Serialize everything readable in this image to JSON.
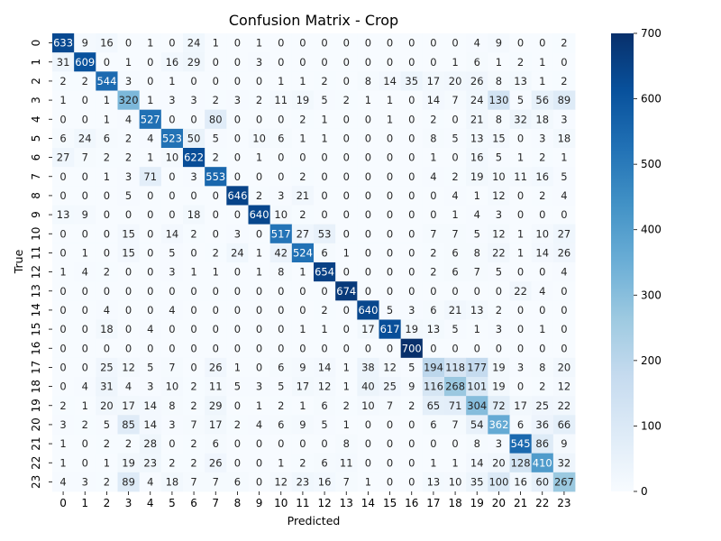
{
  "chart_data": {
    "type": "heatmap",
    "title": "Confusion Matrix - Crop",
    "xlabel": "Predicted",
    "ylabel": "True",
    "x_ticks": [
      "0",
      "1",
      "2",
      "3",
      "4",
      "5",
      "6",
      "7",
      "8",
      "9",
      "10",
      "11",
      "12",
      "13",
      "14",
      "15",
      "16",
      "17",
      "18",
      "19",
      "20",
      "21",
      "22",
      "23"
    ],
    "y_ticks": [
      "0",
      "1",
      "2",
      "3",
      "4",
      "5",
      "6",
      "7",
      "8",
      "9",
      "10",
      "11",
      "12",
      "13",
      "14",
      "15",
      "16",
      "17",
      "18",
      "19",
      "20",
      "21",
      "22",
      "23"
    ],
    "colorbar": {
      "min": 0,
      "max": 700,
      "ticks": [
        0,
        100,
        200,
        300,
        400,
        500,
        600,
        700
      ],
      "colormap": "Blues",
      "low_color": "#f7fbff",
      "high_color": "#08306b"
    },
    "matrix": [
      [
        633,
        9,
        16,
        0,
        1,
        0,
        24,
        1,
        0,
        1,
        0,
        0,
        0,
        0,
        0,
        0,
        0,
        0,
        0,
        4,
        9,
        0,
        0,
        2
      ],
      [
        31,
        609,
        0,
        1,
        0,
        16,
        29,
        0,
        0,
        3,
        0,
        0,
        0,
        0,
        0,
        0,
        0,
        0,
        1,
        6,
        1,
        2,
        1,
        0
      ],
      [
        2,
        2,
        544,
        3,
        0,
        1,
        0,
        0,
        0,
        0,
        1,
        1,
        2,
        0,
        8,
        14,
        35,
        17,
        20,
        26,
        8,
        13,
        1,
        2
      ],
      [
        1,
        0,
        1,
        320,
        1,
        3,
        3,
        2,
        3,
        2,
        11,
        19,
        5,
        2,
        1,
        1,
        0,
        14,
        7,
        24,
        130,
        5,
        56,
        89
      ],
      [
        0,
        0,
        1,
        4,
        527,
        0,
        0,
        80,
        0,
        0,
        0,
        2,
        1,
        0,
        0,
        1,
        0,
        2,
        0,
        21,
        8,
        32,
        18,
        3
      ],
      [
        6,
        24,
        6,
        2,
        4,
        523,
        50,
        5,
        0,
        10,
        6,
        1,
        1,
        0,
        0,
        0,
        0,
        8,
        5,
        13,
        15,
        0,
        3,
        18
      ],
      [
        27,
        7,
        2,
        2,
        1,
        10,
        622,
        2,
        0,
        1,
        0,
        0,
        0,
        0,
        0,
        0,
        0,
        1,
        0,
        16,
        5,
        1,
        2,
        1
      ],
      [
        0,
        0,
        1,
        3,
        71,
        0,
        3,
        553,
        0,
        0,
        0,
        2,
        0,
        0,
        0,
        0,
        0,
        4,
        2,
        19,
        10,
        11,
        16,
        5
      ],
      [
        0,
        0,
        0,
        5,
        0,
        0,
        0,
        0,
        646,
        2,
        3,
        21,
        0,
        0,
        0,
        0,
        0,
        0,
        4,
        1,
        12,
        0,
        2,
        4
      ],
      [
        13,
        9,
        0,
        0,
        0,
        0,
        18,
        0,
        0,
        640,
        10,
        2,
        0,
        0,
        0,
        0,
        0,
        0,
        1,
        4,
        3,
        0,
        0,
        0
      ],
      [
        0,
        0,
        0,
        15,
        0,
        14,
        2,
        0,
        3,
        0,
        517,
        27,
        53,
        0,
        0,
        0,
        0,
        7,
        7,
        5,
        12,
        1,
        10,
        27
      ],
      [
        0,
        1,
        0,
        15,
        0,
        5,
        0,
        2,
        24,
        1,
        42,
        524,
        6,
        1,
        0,
        0,
        0,
        2,
        6,
        8,
        22,
        1,
        14,
        26
      ],
      [
        1,
        4,
        2,
        0,
        0,
        3,
        1,
        1,
        0,
        1,
        8,
        1,
        654,
        0,
        0,
        0,
        0,
        2,
        6,
        7,
        5,
        0,
        0,
        4
      ],
      [
        0,
        0,
        0,
        0,
        0,
        0,
        0,
        0,
        0,
        0,
        0,
        0,
        0,
        674,
        0,
        0,
        0,
        0,
        0,
        0,
        0,
        22,
        4,
        0
      ],
      [
        0,
        0,
        4,
        0,
        0,
        4,
        0,
        0,
        0,
        0,
        0,
        0,
        2,
        0,
        640,
        5,
        3,
        6,
        21,
        13,
        2,
        0,
        0,
        0
      ],
      [
        0,
        0,
        18,
        0,
        4,
        0,
        0,
        0,
        0,
        0,
        0,
        1,
        1,
        0,
        17,
        617,
        19,
        13,
        5,
        1,
        3,
        0,
        1,
        0
      ],
      [
        0,
        0,
        0,
        0,
        0,
        0,
        0,
        0,
        0,
        0,
        0,
        0,
        0,
        0,
        0,
        0,
        700,
        0,
        0,
        0,
        0,
        0,
        0,
        0
      ],
      [
        0,
        0,
        25,
        12,
        5,
        7,
        0,
        26,
        1,
        0,
        6,
        9,
        14,
        1,
        38,
        12,
        5,
        194,
        118,
        177,
        19,
        3,
        8,
        20
      ],
      [
        0,
        4,
        31,
        4,
        3,
        10,
        2,
        11,
        5,
        3,
        5,
        17,
        12,
        1,
        40,
        25,
        9,
        116,
        268,
        101,
        19,
        0,
        2,
        12
      ],
      [
        2,
        1,
        20,
        17,
        14,
        8,
        2,
        29,
        0,
        1,
        2,
        1,
        6,
        2,
        10,
        7,
        2,
        65,
        71,
        304,
        72,
        17,
        25,
        22
      ],
      [
        3,
        2,
        5,
        85,
        14,
        3,
        7,
        17,
        2,
        4,
        6,
        9,
        5,
        1,
        0,
        0,
        0,
        6,
        7,
        54,
        362,
        6,
        36,
        66
      ],
      [
        1,
        0,
        2,
        2,
        28,
        0,
        2,
        6,
        0,
        0,
        0,
        0,
        0,
        8,
        0,
        0,
        0,
        0,
        0,
        8,
        3,
        545,
        86,
        9
      ],
      [
        1,
        0,
        1,
        19,
        23,
        2,
        2,
        26,
        0,
        0,
        1,
        2,
        6,
        11,
        0,
        0,
        0,
        1,
        1,
        14,
        20,
        128,
        410,
        32
      ],
      [
        4,
        3,
        2,
        89,
        4,
        18,
        7,
        7,
        6,
        0,
        12,
        23,
        16,
        7,
        1,
        0,
        0,
        13,
        10,
        35,
        100,
        16,
        60,
        267
      ]
    ]
  }
}
